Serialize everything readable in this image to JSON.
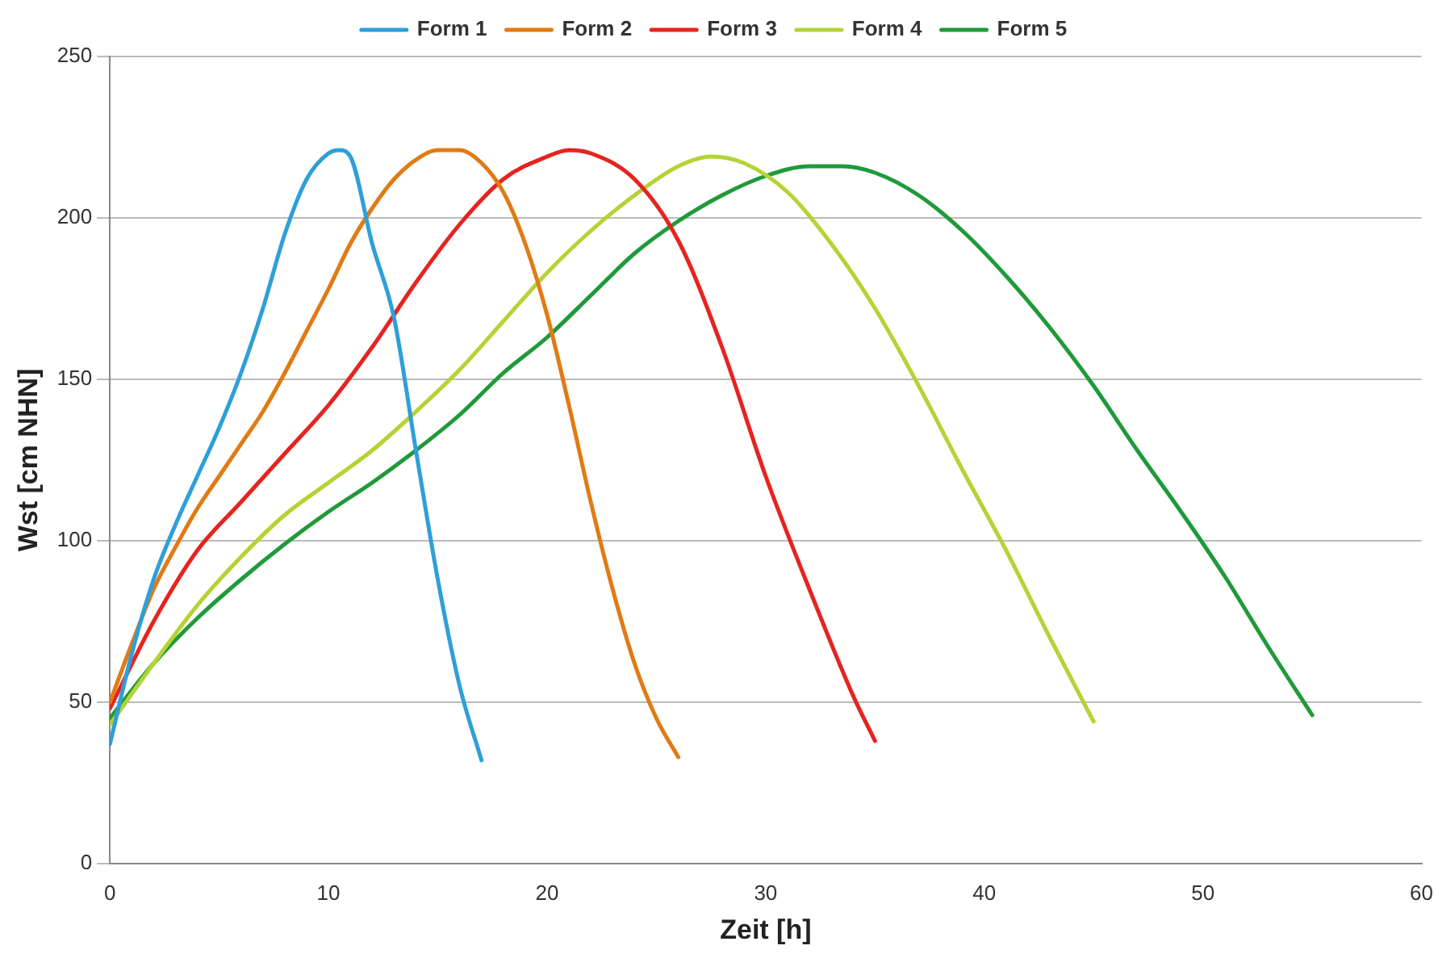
{
  "chart_data": {
    "type": "line",
    "xlabel": "Zeit [h]",
    "ylabel": "Wst [cm NHN]",
    "xlim": [
      0,
      60
    ],
    "xticks": [
      0,
      10,
      20,
      30,
      40,
      50,
      60
    ],
    "ylim": [
      0,
      250
    ],
    "yticks": [
      0,
      50,
      100,
      150,
      200,
      250
    ],
    "grid": "y",
    "legend": "top",
    "marker": "none",
    "series": [
      {
        "name": "Form 1",
        "color": "#2e9fd9",
        "x": [
          0,
          1,
          2,
          3,
          4,
          5,
          6,
          7,
          8,
          9,
          10,
          10.5,
          11,
          12,
          13,
          14,
          15,
          16,
          17
        ],
        "values": [
          37,
          65,
          88,
          105,
          120,
          135,
          152,
          172,
          195,
          212,
          220,
          221,
          219,
          192,
          169,
          128,
          88,
          55,
          32
        ]
      },
      {
        "name": "Form 2",
        "color": "#e07b14",
        "x": [
          0,
          1,
          2,
          3,
          4,
          5,
          6,
          7,
          8,
          9,
          10,
          11,
          12,
          13,
          14,
          15,
          16,
          17,
          18,
          19,
          20,
          21,
          22,
          23,
          24,
          25,
          26
        ],
        "values": [
          50,
          68,
          85,
          98,
          110,
          120,
          130,
          140,
          152,
          165,
          178,
          192,
          203,
          212,
          218,
          221,
          221,
          217,
          208,
          192,
          170,
          142,
          112,
          85,
          62,
          45,
          33
        ]
      },
      {
        "name": "Form 3",
        "color": "#e52420",
        "x": [
          0,
          2,
          4,
          6,
          8,
          10,
          12,
          14,
          16,
          18,
          20,
          21,
          22,
          24,
          26,
          28,
          30,
          32,
          34,
          35
        ],
        "values": [
          48,
          75,
          97,
          112,
          127,
          142,
          160,
          180,
          198,
          212,
          219,
          221,
          220,
          212,
          193,
          160,
          120,
          85,
          52,
          38
        ]
      },
      {
        "name": "Form 4",
        "color": "#b5d334",
        "x": [
          0,
          2,
          4,
          6,
          8,
          10,
          12,
          14,
          16,
          18,
          20,
          22,
          24,
          26,
          27.5,
          29,
          31,
          33,
          35,
          37,
          39,
          41,
          43,
          45
        ],
        "values": [
          43,
          62,
          80,
          95,
          108,
          118,
          128,
          140,
          153,
          168,
          183,
          196,
          207,
          216,
          219,
          217,
          208,
          192,
          172,
          148,
          122,
          97,
          70,
          44
        ]
      },
      {
        "name": "Form 5",
        "color": "#1f9a3a",
        "x": [
          0,
          2,
          4,
          6,
          8,
          10,
          12,
          14,
          16,
          18,
          20,
          22,
          24,
          26,
          28,
          30,
          32,
          33.5,
          35,
          37,
          39,
          41,
          43,
          45,
          47,
          49,
          51,
          53,
          55
        ],
        "values": [
          45,
          62,
          76,
          88,
          99,
          109,
          118,
          128,
          139,
          152,
          163,
          176,
          189,
          199,
          207,
          213,
          216,
          216,
          214,
          207,
          196,
          182,
          166,
          148,
          128,
          109,
          89,
          67,
          46
        ]
      }
    ]
  }
}
